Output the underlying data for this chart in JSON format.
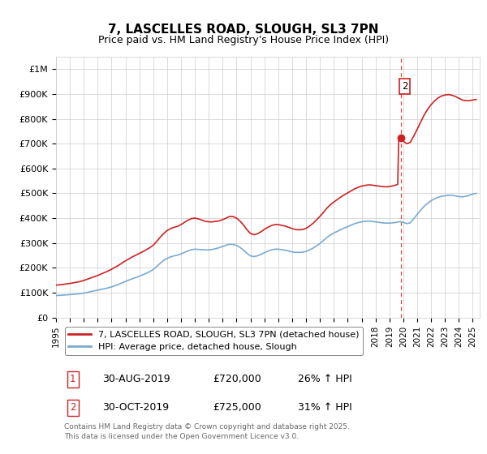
{
  "title": "7, LASCELLES ROAD, SLOUGH, SL3 7PN",
  "subtitle": "Price paid vs. HM Land Registry's House Price Index (HPI)",
  "ylabel_ticks": [
    "£0",
    "£100K",
    "£200K",
    "£300K",
    "£400K",
    "£500K",
    "£600K",
    "£700K",
    "£800K",
    "£900K",
    "£1M"
  ],
  "ytick_values": [
    0,
    100000,
    200000,
    300000,
    400000,
    500000,
    600000,
    700000,
    800000,
    900000,
    1000000
  ],
  "ylim": [
    0,
    1050000
  ],
  "xlim_start": 1995.0,
  "xlim_end": 2025.5,
  "hpi_color": "#7aaad0",
  "price_color": "#cc2222",
  "annotation_color": "#cc2222",
  "grid_color": "#cccccc",
  "background_color": "#ffffff",
  "legend_label_price": "7, LASCELLES ROAD, SLOUGH, SL3 7PN (detached house)",
  "legend_label_hpi": "HPI: Average price, detached house, Slough",
  "sale1_label": "1",
  "sale1_date": "30-AUG-2019",
  "sale1_price": "£720,000",
  "sale1_hpi": "26% ↑ HPI",
  "sale1_year": 2019.67,
  "sale1_value": 720000,
  "sale2_label": "2",
  "sale2_date": "30-OCT-2019",
  "sale2_price": "£725,000",
  "sale2_hpi": "31% ↑ HPI",
  "sale2_year": 2019.83,
  "sale2_value": 725000,
  "footer": "Contains HM Land Registry data © Crown copyright and database right 2025.\nThis data is licensed under the Open Government Licence v3.0.",
  "hpi_data": [
    [
      1995.0,
      88000
    ],
    [
      1995.25,
      89000
    ],
    [
      1995.5,
      90000
    ],
    [
      1995.75,
      91000
    ],
    [
      1996.0,
      92000
    ],
    [
      1996.25,
      93000
    ],
    [
      1996.5,
      94500
    ],
    [
      1996.75,
      96000
    ],
    [
      1997.0,
      98000
    ],
    [
      1997.25,
      101000
    ],
    [
      1997.5,
      104000
    ],
    [
      1997.75,
      107000
    ],
    [
      1998.0,
      110000
    ],
    [
      1998.25,
      113000
    ],
    [
      1998.5,
      116000
    ],
    [
      1998.75,
      119000
    ],
    [
      1999.0,
      123000
    ],
    [
      1999.25,
      128000
    ],
    [
      1999.5,
      133000
    ],
    [
      1999.75,
      139000
    ],
    [
      2000.0,
      145000
    ],
    [
      2000.25,
      151000
    ],
    [
      2000.5,
      156000
    ],
    [
      2000.75,
      161000
    ],
    [
      2001.0,
      166000
    ],
    [
      2001.25,
      172000
    ],
    [
      2001.5,
      178000
    ],
    [
      2001.75,
      185000
    ],
    [
      2002.0,
      193000
    ],
    [
      2002.25,
      205000
    ],
    [
      2002.5,
      218000
    ],
    [
      2002.75,
      230000
    ],
    [
      2003.0,
      238000
    ],
    [
      2003.25,
      244000
    ],
    [
      2003.5,
      248000
    ],
    [
      2003.75,
      251000
    ],
    [
      2004.0,
      256000
    ],
    [
      2004.25,
      262000
    ],
    [
      2004.5,
      268000
    ],
    [
      2004.75,
      273000
    ],
    [
      2005.0,
      275000
    ],
    [
      2005.25,
      274000
    ],
    [
      2005.5,
      273000
    ],
    [
      2005.75,
      272000
    ],
    [
      2006.0,
      272000
    ],
    [
      2006.25,
      274000
    ],
    [
      2006.5,
      277000
    ],
    [
      2006.75,
      281000
    ],
    [
      2007.0,
      286000
    ],
    [
      2007.25,
      291000
    ],
    [
      2007.5,
      295000
    ],
    [
      2007.75,
      294000
    ],
    [
      2008.0,
      290000
    ],
    [
      2008.25,
      282000
    ],
    [
      2008.5,
      271000
    ],
    [
      2008.75,
      258000
    ],
    [
      2009.0,
      248000
    ],
    [
      2009.25,
      245000
    ],
    [
      2009.5,
      248000
    ],
    [
      2009.75,
      254000
    ],
    [
      2010.0,
      261000
    ],
    [
      2010.25,
      267000
    ],
    [
      2010.5,
      272000
    ],
    [
      2010.75,
      275000
    ],
    [
      2011.0,
      275000
    ],
    [
      2011.25,
      273000
    ],
    [
      2011.5,
      271000
    ],
    [
      2011.75,
      268000
    ],
    [
      2012.0,
      264000
    ],
    [
      2012.25,
      262000
    ],
    [
      2012.5,
      262000
    ],
    [
      2012.75,
      263000
    ],
    [
      2013.0,
      266000
    ],
    [
      2013.25,
      272000
    ],
    [
      2013.5,
      279000
    ],
    [
      2013.75,
      288000
    ],
    [
      2014.0,
      298000
    ],
    [
      2014.25,
      310000
    ],
    [
      2014.5,
      322000
    ],
    [
      2014.75,
      332000
    ],
    [
      2015.0,
      340000
    ],
    [
      2015.25,
      347000
    ],
    [
      2015.5,
      354000
    ],
    [
      2015.75,
      360000
    ],
    [
      2016.0,
      366000
    ],
    [
      2016.25,
      372000
    ],
    [
      2016.5,
      378000
    ],
    [
      2016.75,
      382000
    ],
    [
      2017.0,
      385000
    ],
    [
      2017.25,
      387000
    ],
    [
      2017.5,
      388000
    ],
    [
      2017.75,
      387000
    ],
    [
      2018.0,
      385000
    ],
    [
      2018.25,
      383000
    ],
    [
      2018.5,
      381000
    ],
    [
      2018.75,
      380000
    ],
    [
      2019.0,
      380000
    ],
    [
      2019.25,
      381000
    ],
    [
      2019.5,
      383000
    ],
    [
      2019.75,
      386000
    ],
    [
      2020.0,
      383000
    ],
    [
      2020.25,
      378000
    ],
    [
      2020.5,
      381000
    ],
    [
      2020.75,
      398000
    ],
    [
      2021.0,
      415000
    ],
    [
      2021.25,
      432000
    ],
    [
      2021.5,
      448000
    ],
    [
      2021.75,
      460000
    ],
    [
      2022.0,
      470000
    ],
    [
      2022.25,
      478000
    ],
    [
      2022.5,
      484000
    ],
    [
      2022.75,
      488000
    ],
    [
      2023.0,
      490000
    ],
    [
      2023.25,
      492000
    ],
    [
      2023.5,
      492000
    ],
    [
      2023.75,
      490000
    ],
    [
      2024.0,
      487000
    ],
    [
      2024.25,
      486000
    ],
    [
      2024.5,
      488000
    ],
    [
      2024.75,
      492000
    ],
    [
      2025.0,
      497000
    ],
    [
      2025.25,
      500000
    ]
  ],
  "price_data": [
    [
      1995.0,
      130000
    ],
    [
      1995.25,
      131500
    ],
    [
      1995.5,
      133000
    ],
    [
      1995.75,
      135000
    ],
    [
      1996.0,
      137000
    ],
    [
      1996.25,
      139500
    ],
    [
      1996.5,
      142000
    ],
    [
      1996.75,
      145000
    ],
    [
      1997.0,
      149000
    ],
    [
      1997.25,
      154000
    ],
    [
      1997.5,
      159000
    ],
    [
      1997.75,
      164000
    ],
    [
      1998.0,
      169000
    ],
    [
      1998.25,
      175000
    ],
    [
      1998.5,
      181000
    ],
    [
      1998.75,
      187000
    ],
    [
      1999.0,
      194000
    ],
    [
      1999.25,
      202000
    ],
    [
      1999.5,
      210000
    ],
    [
      1999.75,
      219000
    ],
    [
      2000.0,
      228000
    ],
    [
      2000.25,
      236000
    ],
    [
      2000.5,
      244000
    ],
    [
      2000.75,
      251000
    ],
    [
      2001.0,
      258000
    ],
    [
      2001.25,
      265000
    ],
    [
      2001.5,
      273000
    ],
    [
      2001.75,
      281000
    ],
    [
      2002.0,
      291000
    ],
    [
      2002.25,
      306000
    ],
    [
      2002.5,
      323000
    ],
    [
      2002.75,
      338000
    ],
    [
      2003.0,
      350000
    ],
    [
      2003.25,
      358000
    ],
    [
      2003.5,
      363000
    ],
    [
      2003.75,
      367000
    ],
    [
      2004.0,
      374000
    ],
    [
      2004.25,
      383000
    ],
    [
      2004.5,
      392000
    ],
    [
      2004.75,
      398000
    ],
    [
      2005.0,
      400000
    ],
    [
      2005.25,
      397000
    ],
    [
      2005.5,
      392000
    ],
    [
      2005.75,
      387000
    ],
    [
      2006.0,
      385000
    ],
    [
      2006.25,
      385000
    ],
    [
      2006.5,
      387000
    ],
    [
      2006.75,
      389000
    ],
    [
      2007.0,
      394000
    ],
    [
      2007.25,
      400000
    ],
    [
      2007.5,
      407000
    ],
    [
      2007.75,
      406000
    ],
    [
      2008.0,
      400000
    ],
    [
      2008.25,
      388000
    ],
    [
      2008.5,
      372000
    ],
    [
      2008.75,
      353000
    ],
    [
      2009.0,
      338000
    ],
    [
      2009.25,
      333000
    ],
    [
      2009.5,
      337000
    ],
    [
      2009.75,
      345000
    ],
    [
      2010.0,
      355000
    ],
    [
      2010.25,
      363000
    ],
    [
      2010.5,
      370000
    ],
    [
      2010.75,
      374000
    ],
    [
      2011.0,
      374000
    ],
    [
      2011.25,
      371000
    ],
    [
      2011.5,
      368000
    ],
    [
      2011.75,
      363000
    ],
    [
      2012.0,
      358000
    ],
    [
      2012.25,
      354000
    ],
    [
      2012.5,
      353000
    ],
    [
      2012.75,
      354000
    ],
    [
      2013.0,
      359000
    ],
    [
      2013.25,
      368000
    ],
    [
      2013.5,
      379000
    ],
    [
      2013.75,
      393000
    ],
    [
      2014.0,
      407000
    ],
    [
      2014.25,
      423000
    ],
    [
      2014.5,
      440000
    ],
    [
      2014.75,
      454000
    ],
    [
      2015.0,
      465000
    ],
    [
      2015.25,
      475000
    ],
    [
      2015.5,
      485000
    ],
    [
      2015.75,
      494000
    ],
    [
      2016.0,
      502000
    ],
    [
      2016.25,
      510000
    ],
    [
      2016.5,
      518000
    ],
    [
      2016.75,
      524000
    ],
    [
      2017.0,
      529000
    ],
    [
      2017.25,
      532000
    ],
    [
      2017.5,
      534000
    ],
    [
      2017.75,
      533000
    ],
    [
      2018.0,
      531000
    ],
    [
      2018.25,
      529000
    ],
    [
      2018.5,
      527000
    ],
    [
      2018.75,
      526000
    ],
    [
      2019.0,
      527000
    ],
    [
      2019.25,
      530000
    ],
    [
      2019.5,
      534000
    ],
    [
      2019.6,
      536000
    ],
    [
      2019.67,
      720000
    ],
    [
      2019.75,
      721000
    ],
    [
      2019.83,
      725000
    ],
    [
      2019.9,
      722000
    ],
    [
      2020.0,
      710000
    ],
    [
      2020.25,
      700000
    ],
    [
      2020.5,
      705000
    ],
    [
      2020.75,
      730000
    ],
    [
      2021.0,
      758000
    ],
    [
      2021.25,
      787000
    ],
    [
      2021.5,
      815000
    ],
    [
      2021.75,
      838000
    ],
    [
      2022.0,
      857000
    ],
    [
      2022.25,
      872000
    ],
    [
      2022.5,
      884000
    ],
    [
      2022.75,
      892000
    ],
    [
      2023.0,
      896000
    ],
    [
      2023.25,
      898000
    ],
    [
      2023.5,
      895000
    ],
    [
      2023.75,
      890000
    ],
    [
      2024.0,
      883000
    ],
    [
      2024.25,
      876000
    ],
    [
      2024.5,
      873000
    ],
    [
      2024.75,
      873000
    ],
    [
      2025.0,
      876000
    ],
    [
      2025.25,
      878000
    ]
  ]
}
